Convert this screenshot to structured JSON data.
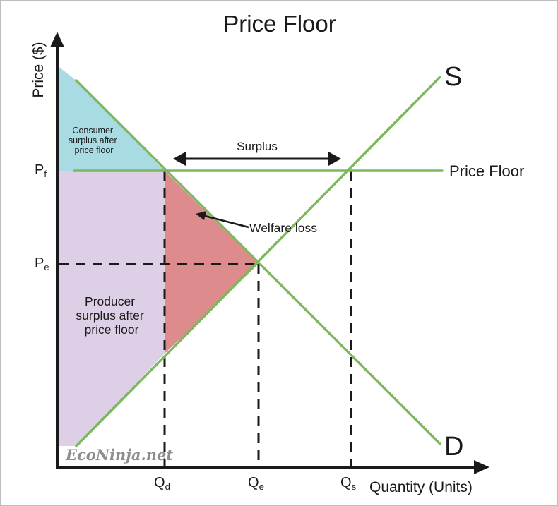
{
  "title": "Price Floor",
  "axes": {
    "y_label": "Price ($)",
    "x_label": "Quantity (Units)"
  },
  "curves": {
    "supply_label": "S",
    "demand_label": "D",
    "price_floor_label": "Price Floor"
  },
  "price_ticks": {
    "pf": {
      "main": "P",
      "sub": "f"
    },
    "pe": {
      "main": "P",
      "sub": "e"
    }
  },
  "quantity_ticks": {
    "qd": {
      "main": "Q",
      "sub": "d"
    },
    "qe": {
      "main": "Q",
      "sub": "e"
    },
    "qs": {
      "main": "Q",
      "sub": "s"
    }
  },
  "regions": {
    "consumer_surplus": [
      "Consumer",
      "surplus after",
      "price floor"
    ],
    "producer_surplus": [
      "Producer",
      "surplus after",
      "price floor"
    ],
    "welfare_loss": "Welfare loss",
    "surplus": "Surplus"
  },
  "watermark": "EcoNinja.net",
  "colors": {
    "curve_green": "#7cb85c",
    "consumer_surplus": "#a9dbe3",
    "producer_surplus": "#ddd0e6",
    "welfare_loss": "#dd8b8c",
    "axis": "#1a1a1a"
  }
}
